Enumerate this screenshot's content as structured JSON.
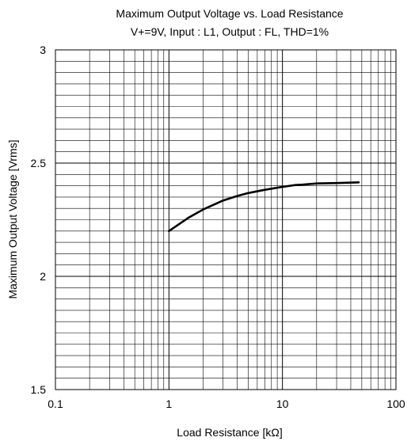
{
  "chart_data": {
    "type": "line",
    "title": "Maximum Output Voltage vs. Load Resistance",
    "subtitle": "V+=9V, Input : L1, Output : FL, THD=1%",
    "xlabel": "Load Resistance [kΩ]",
    "ylabel": "Maximum Output Voltage [Vrms]",
    "x_scale": "log",
    "xlim": [
      0.1,
      100
    ],
    "ylim": [
      1.5,
      3
    ],
    "x_ticks": [
      0.1,
      1,
      10,
      100
    ],
    "x_tick_labels": [
      "0.1",
      "1",
      "10",
      "100"
    ],
    "y_ticks": [
      1.5,
      2,
      2.5,
      3
    ],
    "y_tick_labels": [
      "1.5",
      "2",
      "2.5",
      "3"
    ],
    "y_minor_step": 0.05,
    "grid": true,
    "line_color": "#000000",
    "series": [
      {
        "x": [
          1,
          1.5,
          2,
          3,
          4,
          5,
          7,
          10,
          13,
          15,
          20,
          30,
          47
        ],
        "y": [
          2.2,
          2.26,
          2.295,
          2.335,
          2.355,
          2.368,
          2.382,
          2.395,
          2.403,
          2.405,
          2.41,
          2.412,
          2.415
        ]
      }
    ]
  }
}
